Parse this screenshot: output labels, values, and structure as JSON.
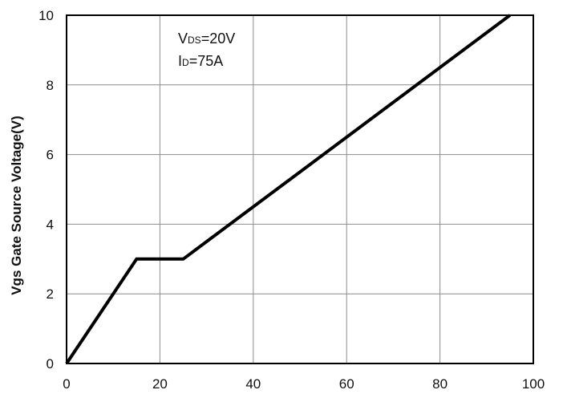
{
  "chart_data": {
    "type": "line",
    "title": "",
    "xlabel": "",
    "ylabel": "Vgs Gate Source Voltage(V)",
    "xlim": [
      0,
      100
    ],
    "ylim": [
      0,
      10
    ],
    "x_ticks": [
      0,
      20,
      40,
      60,
      80,
      100
    ],
    "y_ticks": [
      0,
      2,
      4,
      6,
      8,
      10
    ],
    "x_tick_labels": [
      "0",
      "20",
      "40",
      "60",
      "80",
      "100"
    ],
    "y_tick_labels": [
      "0",
      "2",
      "4",
      "6",
      "8",
      "10"
    ],
    "grid": true,
    "legend": "none",
    "series": [
      {
        "color": "#000000",
        "x": [
          0,
          15,
          25,
          95
        ],
        "y": [
          0,
          3,
          3,
          10
        ]
      }
    ],
    "annotations": [
      {
        "main": "V",
        "sub": "DS",
        "rest": "=20V"
      },
      {
        "main": "I",
        "sub": "D",
        "rest": "=75A"
      }
    ]
  }
}
